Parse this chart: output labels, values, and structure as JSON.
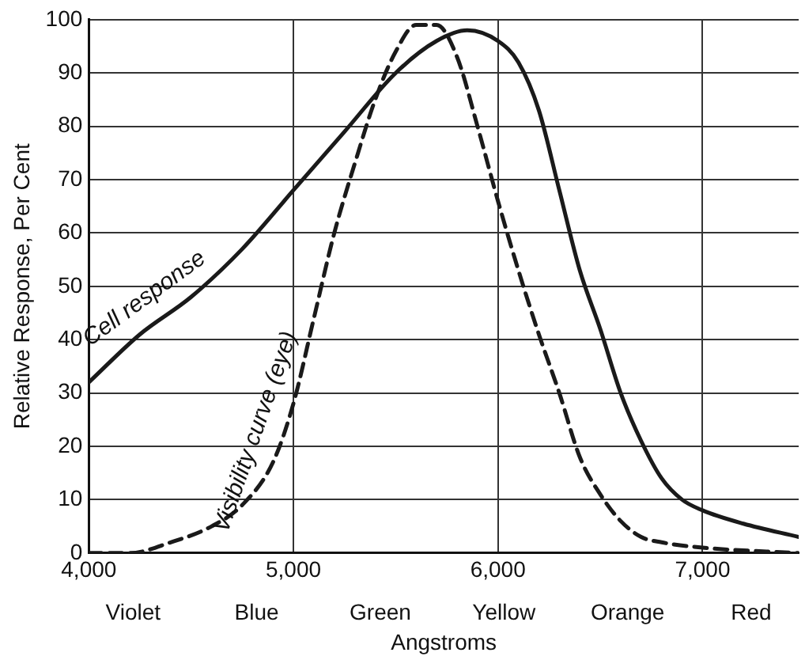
{
  "chart_data": {
    "type": "line",
    "xlabel": "Angstroms",
    "ylabel": "Relative Response, Per Cent",
    "xlim": [
      4000,
      7470
    ],
    "xticks": [
      {
        "value": 4000,
        "label": "4,000"
      },
      {
        "value": 5000,
        "label": "5,000"
      },
      {
        "value": 6000,
        "label": "6,000"
      },
      {
        "value": 7000,
        "label": "7,000"
      }
    ],
    "ylim": [
      0,
      100
    ],
    "yticks": [
      0,
      10,
      20,
      30,
      40,
      50,
      60,
      70,
      80,
      90,
      100
    ],
    "grid": true,
    "legend": false,
    "marker": "none",
    "series": [
      {
        "name": "Cell response",
        "color": "#1a1a1a",
        "line_style": "solid",
        "x": [
          4000,
          4250,
          4500,
          4750,
          5000,
          5250,
          5500,
          5700,
          5850,
          6000,
          6100,
          6200,
          6300,
          6400,
          6500,
          6600,
          6700,
          6800,
          6900,
          7000,
          7200,
          7470
        ],
        "values": [
          32,
          41,
          48,
          57,
          68,
          79,
          90,
          96,
          98,
          96,
          92,
          83,
          68,
          53,
          42,
          30,
          21,
          14,
          10,
          8,
          5.5,
          3
        ]
      },
      {
        "name": "Visibility curve (eye)",
        "color": "#1a1a1a",
        "line_style": "dashed",
        "x": [
          4000,
          4200,
          4400,
          4600,
          4750,
          4900,
          5000,
          5100,
          5200,
          5300,
          5400,
          5500,
          5600,
          5700,
          5800,
          5900,
          6000,
          6100,
          6200,
          6300,
          6400,
          6500,
          6600,
          6700,
          6800,
          7000,
          7470
        ],
        "values": [
          0,
          0,
          2,
          5,
          9,
          17,
          28,
          44,
          60,
          73,
          85,
          94,
          99,
          99,
          93,
          80,
          66,
          53,
          41,
          30,
          18,
          11,
          6,
          3,
          2,
          1,
          0
        ]
      }
    ],
    "annotations": [
      "Violet",
      "Blue",
      "Green",
      "Yellow",
      "Orange",
      "Red"
    ]
  }
}
